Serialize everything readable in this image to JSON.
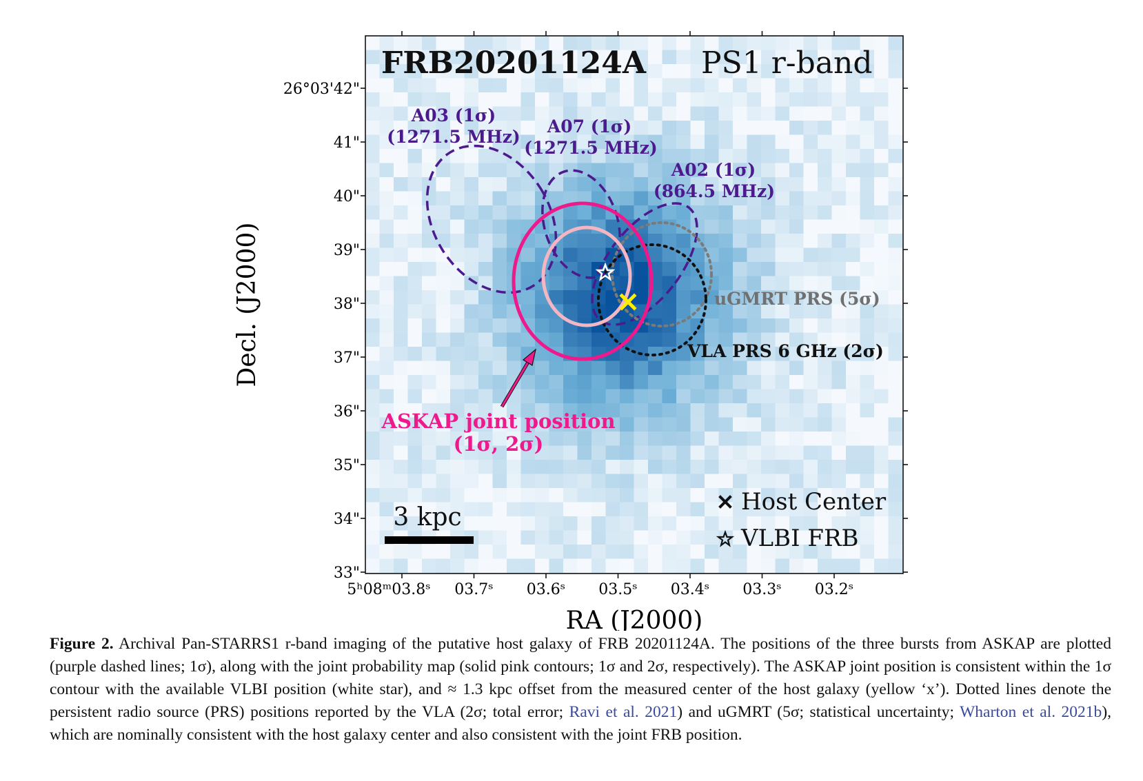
{
  "figure": {
    "title": "FRB20201124A",
    "band": "PS1 r-band",
    "xlabel": "RA (J2000)",
    "ylabel": "Decl. (J2000)",
    "x_ticks": [
      {
        "value": 3.8,
        "label": "5ʰ08ᵐ03.8ˢ"
      },
      {
        "value": 3.7,
        "label": "03.7ˢ"
      },
      {
        "value": 3.6,
        "label": "03.6ˢ"
      },
      {
        "value": 3.5,
        "label": "03.5ˢ"
      },
      {
        "value": 3.4,
        "label": "03.4ˢ"
      },
      {
        "value": 3.3,
        "label": "03.3ˢ"
      },
      {
        "value": 3.2,
        "label": "03.2ˢ"
      }
    ],
    "y_ticks": [
      {
        "value": 42,
        "label": "26°03'42\""
      },
      {
        "value": 41,
        "label": "41\""
      },
      {
        "value": 40,
        "label": "40\""
      },
      {
        "value": 39,
        "label": "39\""
      },
      {
        "value": 38,
        "label": "38\""
      },
      {
        "value": 37,
        "label": "37\""
      },
      {
        "value": 36,
        "label": "36\""
      },
      {
        "value": 35,
        "label": "35\""
      },
      {
        "value": 34,
        "label": "34\""
      },
      {
        "value": 33,
        "label": "33\""
      }
    ],
    "ellipses": [
      {
        "name": "A03",
        "label_line1": "A03 (1σ)",
        "label_line2": "(1271.5 MHz)",
        "color": "#4b1a8c",
        "style": "dashed"
      },
      {
        "name": "A07",
        "label_line1": "A07 (1σ)",
        "label_line2": "(1271.5 MHz)",
        "color": "#4b1a8c",
        "style": "dashed"
      },
      {
        "name": "A02",
        "label_line1": "A02 (1σ)",
        "label_line2": "(864.5 MHz)",
        "color": "#4b1a8c",
        "style": "dashed"
      },
      {
        "name": "uGMRT",
        "label_line1": "uGMRT PRS (5σ)",
        "color": "#777777",
        "style": "dotted"
      },
      {
        "name": "VLA",
        "label_line1": "VLA PRS 6 GHz (2σ)",
        "color": "#111111",
        "style": "dotted"
      },
      {
        "name": "ASKAP",
        "label_line1": "ASKAP joint position",
        "label_line2": "(1σ, 2σ)",
        "color": "#ee1a8c",
        "style": "solid"
      }
    ],
    "legend": [
      {
        "symbol": "×",
        "text": "Host Center"
      },
      {
        "symbol": "☆",
        "text": "VLBI FRB"
      }
    ],
    "scale_bar": "3 kpc",
    "colors": {
      "ascap_2sigma": "#ee1a8c",
      "ascap_1sigma": "#f4b6c2",
      "askap_purple": "#4b1a8c",
      "host": "#ffee00",
      "map": "#08519c"
    }
  },
  "caption": {
    "label": "Figure 2.",
    "p1": " Archival Pan-STARRS1 r-band imaging of the putative host galaxy of FRB 20201124A. The positions of the three bursts from ASKAP are plotted (purple dashed lines; 1σ), along with the joint probability map (solid pink contours; 1σ and 2σ, respectively). The ASKAP joint position is consistent within the 1σ contour with the available VLBI position (white star), and ≈ 1.3 kpc offset from the measured center of the host galaxy (yellow ‘x’). Dotted lines denote the persistent radio source (PRS) positions reported by the VLA (2σ; total error; ",
    "ref1": "Ravi et al. 2021",
    "p2": ") and uGMRT (5σ; statistical uncertainty; ",
    "ref2": "Wharton et al. 2021b",
    "p3": "), which are nominally consistent with the host galaxy center and also consistent with the joint FRB position."
  }
}
